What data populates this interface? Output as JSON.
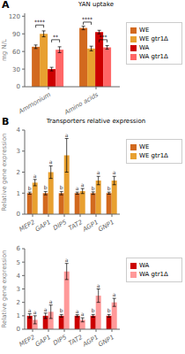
{
  "chart_data": [
    {
      "type": "bar",
      "panel_label": "A",
      "title": "YAN uptake",
      "ylabel": "mg N/L",
      "categories": [
        "Ammonium",
        "Amino acids"
      ],
      "series": [
        {
          "name": "WE",
          "color": "#D2691E",
          "values": [
            68,
            100
          ],
          "errors": [
            3,
            3
          ]
        },
        {
          "name": "WE gtr1Δ",
          "color": "#E8A030",
          "values": [
            90,
            65
          ],
          "errors": [
            5,
            4
          ]
        },
        {
          "name": "WA",
          "color": "#CC0000",
          "values": [
            30,
            93
          ],
          "errors": [
            3,
            3
          ]
        },
        {
          "name": "WA gtr1Δ",
          "color": "#FF6666",
          "values": [
            63,
            67
          ],
          "errors": [
            5,
            3
          ]
        }
      ],
      "ylim": [
        0,
        125
      ],
      "yticks": [
        0,
        30,
        60,
        90,
        120
      ],
      "legend": "right",
      "annotations": [
        {
          "text": "****",
          "category": "Ammonium",
          "series": [
            "WE",
            "WE gtr1Δ"
          ],
          "y": 105
        },
        {
          "text": "**",
          "category": "Ammonium",
          "series": [
            "WA",
            "WA gtr1Δ"
          ],
          "y": 80
        },
        {
          "text": "****",
          "category": "Amino acids",
          "series": [
            "WE",
            "WE gtr1Δ"
          ],
          "y": 110
        },
        {
          "text": "***",
          "category": "Amino acids",
          "series": [
            "WA",
            "WA gtr1Δ"
          ],
          "y": 80
        }
      ]
    },
    {
      "type": "bar",
      "panel_label": "B",
      "title": "Transporters relative expression",
      "ylabel": "Relative gene expression",
      "categories": [
        "MEP2",
        "GAP1",
        "DIP5",
        "TAT2",
        "AGP1",
        "GNP1"
      ],
      "series": [
        {
          "name": "WE",
          "color": "#D2691E",
          "values": [
            1.0,
            1.0,
            1.0,
            1.0,
            1.0,
            1.0
          ],
          "errors": [
            0.05,
            0.08,
            0.08,
            0.05,
            0.06,
            0.05
          ],
          "annotations": [
            "b",
            "b",
            "b",
            "a",
            "b",
            "b"
          ]
        },
        {
          "name": "WE gtr1Δ",
          "color": "#E8A030",
          "values": [
            1.5,
            2.0,
            2.8,
            1.1,
            1.6,
            1.6
          ],
          "errors": [
            0.15,
            0.3,
            0.8,
            0.12,
            0.2,
            0.2
          ],
          "annotations": [
            "a",
            "a",
            "a",
            "a",
            "a",
            "a"
          ]
        }
      ],
      "ylim": [
        0,
        4
      ],
      "yticks": [
        0,
        1,
        2,
        3,
        4
      ],
      "legend": "right"
    },
    {
      "type": "bar",
      "ylabel": "Relative gene expression",
      "categories": [
        "MEP2",
        "GAP1",
        "DIP5",
        "TAT2",
        "AGP1",
        "GNP1"
      ],
      "series": [
        {
          "name": "WA",
          "color": "#CC0000",
          "values": [
            1.0,
            1.0,
            1.0,
            1.0,
            1.0,
            1.0
          ],
          "errors": [
            0.15,
            0.2,
            0.1,
            0.08,
            0.1,
            0.1
          ],
          "annotations": [
            "a",
            "a",
            "b",
            "a",
            "b",
            "b"
          ]
        },
        {
          "name": "WA gtr1Δ",
          "color": "#FF9999",
          "values": [
            0.7,
            1.3,
            4.3,
            0.7,
            2.5,
            2.0
          ],
          "errors": [
            0.3,
            0.5,
            0.6,
            0.15,
            0.5,
            0.3
          ],
          "annotations": [
            "a",
            "a",
            "a",
            "a",
            "a",
            "a"
          ]
        }
      ],
      "ylim": [
        0,
        6
      ],
      "yticks": [
        0,
        1,
        2,
        3,
        4,
        5,
        6
      ],
      "legend": "right"
    }
  ]
}
